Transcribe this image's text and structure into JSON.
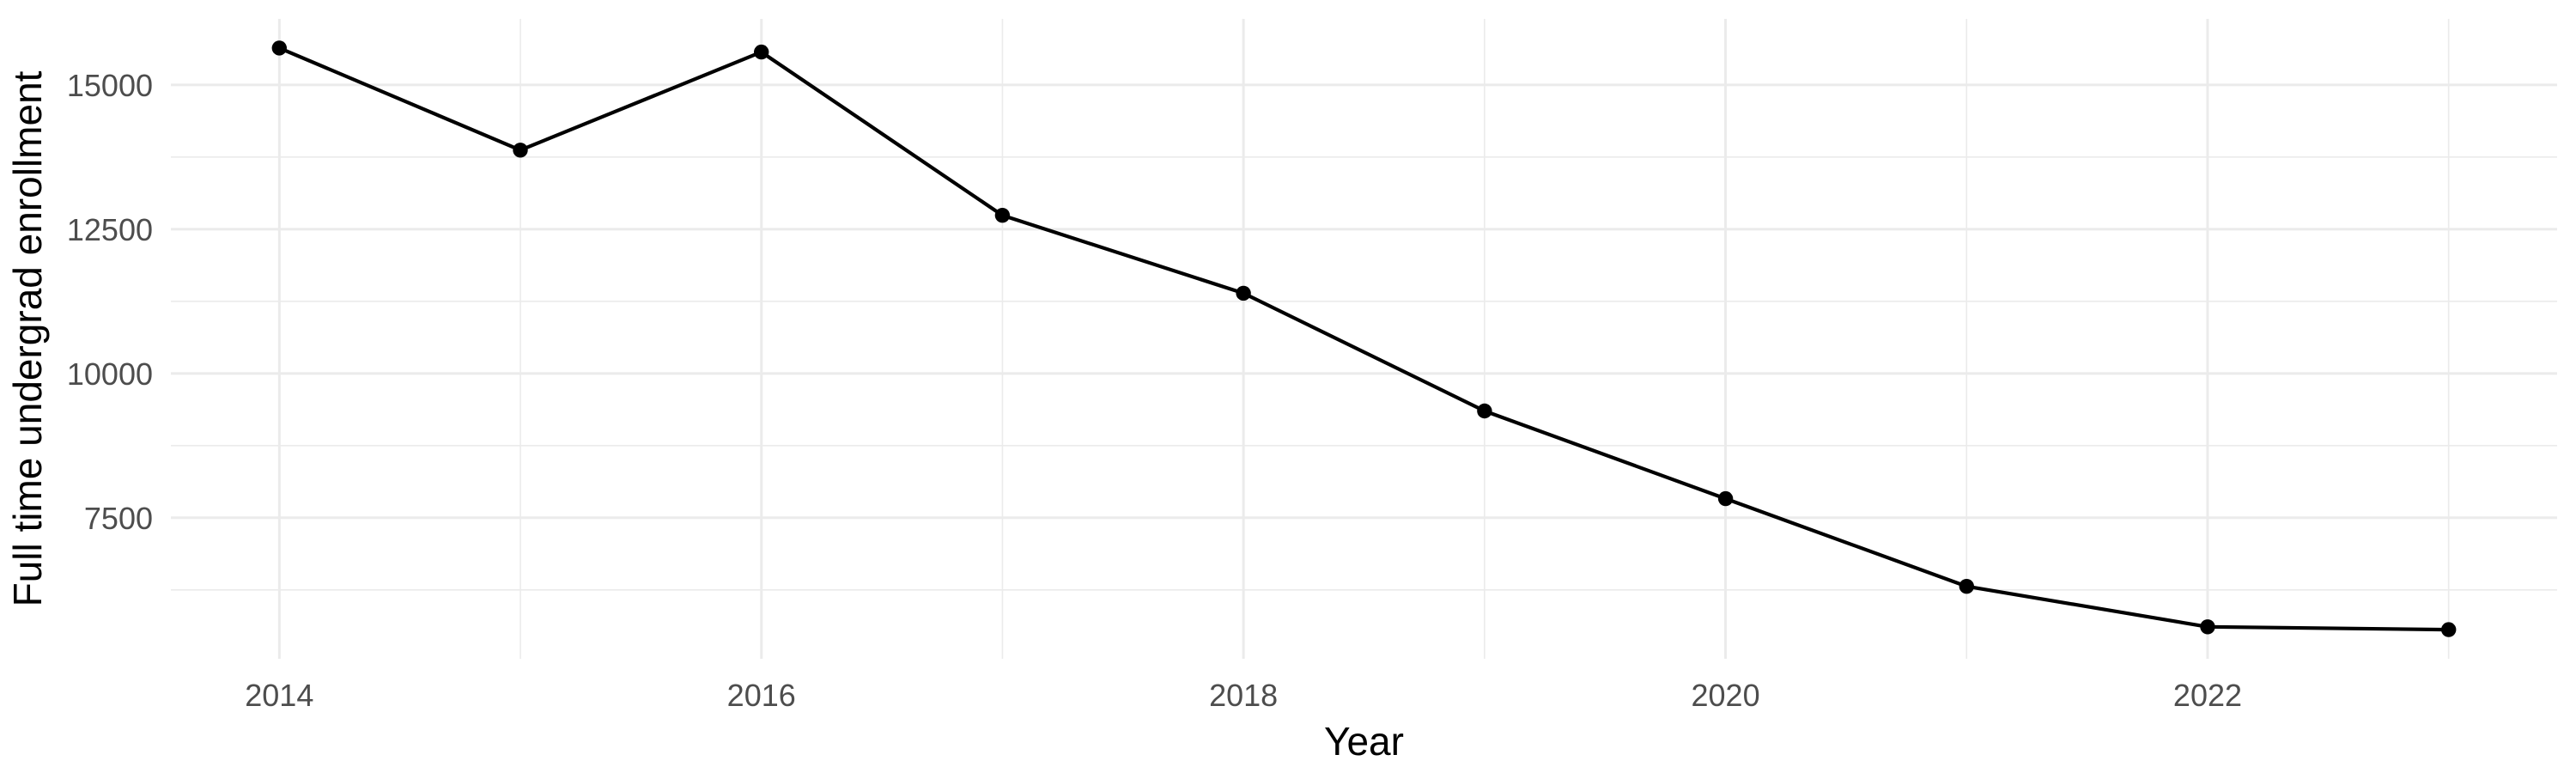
{
  "figure": {
    "background": "#FFFFFF"
  },
  "chart_data": {
    "type": "line",
    "title": "",
    "xlabel": "Year",
    "ylabel": "Full time undergrad enrollment",
    "x": [
      2014,
      2015,
      2016,
      2017,
      2018,
      2019,
      2020,
      2021,
      2022,
      2023
    ],
    "values": [
      15640,
      13870,
      15570,
      12740,
      11390,
      9350,
      7830,
      6310,
      5610,
      5560
    ],
    "series_name": "Full time undergrad enrollment",
    "x_ticks": [
      2014,
      2016,
      2018,
      2020,
      2022
    ],
    "x_tick_labels": [
      "2014",
      "2016",
      "2018",
      "2020",
      "2022"
    ],
    "x_minor_ticks": [
      2015,
      2017,
      2019,
      2021,
      2023
    ],
    "y_ticks": [
      7500,
      10000,
      12500,
      15000
    ],
    "y_tick_labels": [
      "7500",
      "10000",
      "12500",
      "15000"
    ],
    "y_minor_ticks": [
      6250,
      8750,
      11250,
      13750
    ],
    "xlim": [
      2013.55,
      2023.45
    ],
    "ylim": [
      5056,
      16144
    ],
    "grid": "major-and-minor",
    "legend": "none",
    "marker": "filled-circle",
    "colors": {
      "line": "#000000",
      "marker": "#000000",
      "grid": "#EBEBEB",
      "tick_label": "#4D4D4D",
      "axis_title": "#000000",
      "background": "#FFFFFF"
    }
  }
}
